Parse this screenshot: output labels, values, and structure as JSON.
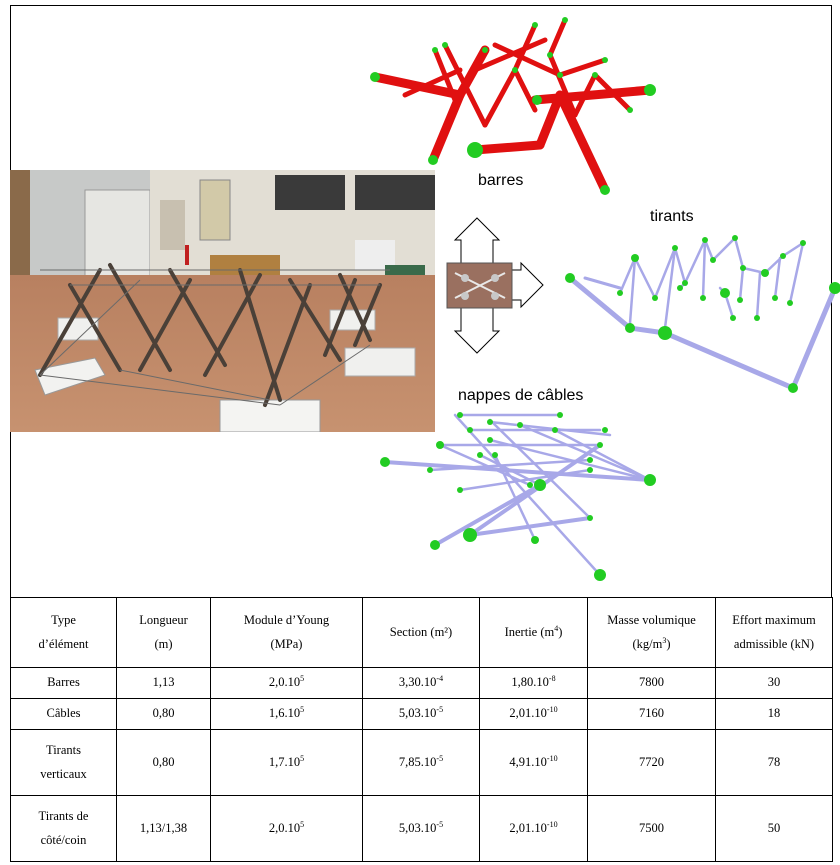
{
  "figure": {
    "labels": {
      "barres": "barres",
      "tirants": "tirants",
      "nappes": "nappes de câbles"
    },
    "colors": {
      "bars": "#e01010",
      "cables": "#a8a8e8",
      "nodes": "#22cc22",
      "ground": "#c98a5a",
      "wall": "#e4e2dc"
    }
  },
  "table": {
    "headers": [
      {
        "line1": "Type",
        "line2": "d’élément"
      },
      {
        "line1": "Longueur",
        "line2": "(m)"
      },
      {
        "line1": "Module d’Young",
        "line2": "(MPa)"
      },
      {
        "line1": "Section (m²)",
        "line2": ""
      },
      {
        "line1": "Inertie (m",
        "sup": "4",
        "after": ")"
      },
      {
        "line1": "Masse volumique",
        "line2": "(kg/m",
        "sup": "3",
        "after": ")"
      },
      {
        "line1": "Effort maximum",
        "line2": "admissible (kN)"
      }
    ],
    "rows": [
      {
        "type1": "Barres",
        "type2": "",
        "length": "1,13",
        "young": "2,0.10",
        "young_exp": "5",
        "section": "3,30.10",
        "section_exp": "-4",
        "inertia": "1,80.10",
        "inertia_exp": "-8",
        "density": "7800",
        "effort": "30"
      },
      {
        "type1": "Câbles",
        "type2": "",
        "length": "0,80",
        "young": "1,6.10",
        "young_exp": "5",
        "section": "5,03.10",
        "section_exp": "-5",
        "inertia": "2,01.10",
        "inertia_exp": "-10",
        "density": "7160",
        "effort": "18"
      },
      {
        "type1": "Tirants",
        "type2": "verticaux",
        "length": "0,80",
        "young": "1,7.10",
        "young_exp": "5",
        "section": "7,85.10",
        "section_exp": "-5",
        "inertia": "4,91.10",
        "inertia_exp": "-10",
        "density": "7720",
        "effort": "78"
      },
      {
        "type1": "Tirants de",
        "type2": "côté/coin",
        "length": "1,13/1,38",
        "young": "2,0.10",
        "young_exp": "5",
        "section": "5,03.10",
        "section_exp": "-5",
        "inertia": "2,01.10",
        "inertia_exp": "-10",
        "density": "7500",
        "effort": "50"
      }
    ]
  }
}
